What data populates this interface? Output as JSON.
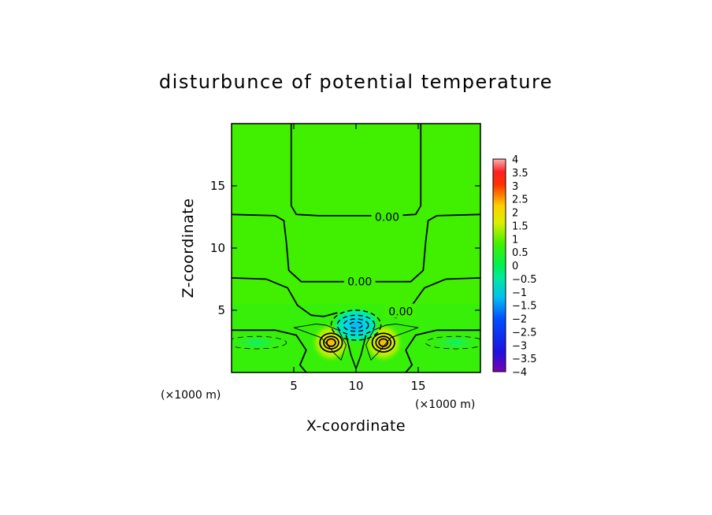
{
  "chart_data": {
    "type": "heatmap",
    "title": "disturbunce of potential temperature",
    "xlabel": "X-coordinate",
    "ylabel": "Z-coordinate",
    "x_unit": "(×1000 m)",
    "z_unit": "(×1000 m)",
    "xlim": [
      0,
      20
    ],
    "ylim": [
      0,
      20
    ],
    "x_ticks": [
      5,
      10,
      15
    ],
    "y_ticks": [
      5,
      10,
      15
    ],
    "colorbar": {
      "min": -4,
      "max": 4,
      "tick_labels": [
        "4",
        "3.5",
        "3",
        "2.5",
        "2",
        "1.5",
        "1",
        "0.5",
        "0",
        "−0.5",
        "−1",
        "−1.5",
        "−2",
        "−2.5",
        "−3",
        "−3.5",
        "−4"
      ]
    },
    "contour_labels": [
      {
        "text": "0.00",
        "x": 12.5,
        "z": 12.5
      },
      {
        "text": "0.00",
        "x": 10.3,
        "z": 7.3
      },
      {
        "text": "0.00",
        "x": 13.6,
        "z": 4.9
      }
    ],
    "background_value": 0.2,
    "features": [
      {
        "kind": "warm core",
        "x": 8.0,
        "z": 2.4,
        "peak": 2.0
      },
      {
        "kind": "warm core",
        "x": 12.2,
        "z": 2.4,
        "peak": 2.0
      },
      {
        "kind": "cold core",
        "x": 10.0,
        "z": 3.8,
        "peak": -1.5
      },
      {
        "kind": "weak cold band",
        "x": 2.0,
        "z": 2.4,
        "peak": -0.3
      },
      {
        "kind": "weak cold band",
        "x": 18.0,
        "z": 2.4,
        "peak": -0.3
      }
    ]
  }
}
